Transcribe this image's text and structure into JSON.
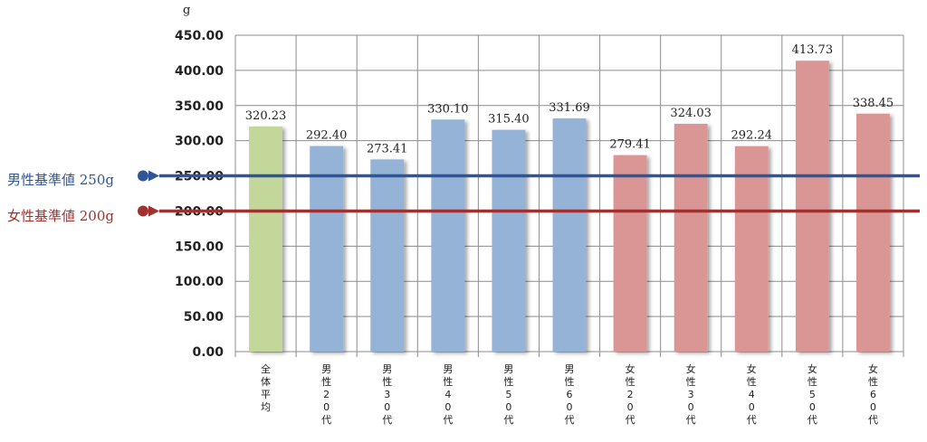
{
  "chart_data": {
    "type": "bar",
    "unit_label": "g",
    "categories": [
      "全体平均",
      "男性20代",
      "男性30代",
      "男性40代",
      "男性50代",
      "男性60代",
      "女性20代",
      "女性30代",
      "女性40代",
      "女性50代",
      "女性60代"
    ],
    "category_label_lines": [
      [
        "全",
        "体",
        "平",
        "均"
      ],
      [
        "男",
        "性",
        "2",
        "0",
        "代"
      ],
      [
        "男",
        "性",
        "3",
        "0",
        "代"
      ],
      [
        "男",
        "性",
        "4",
        "0",
        "代"
      ],
      [
        "男",
        "性",
        "5",
        "0",
        "代"
      ],
      [
        "男",
        "性",
        "6",
        "0",
        "代"
      ],
      [
        "女",
        "性",
        "2",
        "0",
        "代"
      ],
      [
        "女",
        "性",
        "3",
        "0",
        "代"
      ],
      [
        "女",
        "性",
        "4",
        "0",
        "代"
      ],
      [
        "女",
        "性",
        "5",
        "0",
        "代"
      ],
      [
        "女",
        "性",
        "6",
        "0",
        "代"
      ]
    ],
    "values": [
      320.23,
      292.4,
      273.41,
      330.1,
      315.4,
      331.69,
      279.41,
      324.03,
      292.24,
      413.73,
      338.45
    ],
    "value_labels": [
      "320.23",
      "292.40",
      "273.41",
      "330.10",
      "315.40",
      "331.69",
      "279.41",
      "324.03",
      "292.24",
      "413.73",
      "338.45"
    ],
    "bar_colors": [
      "#c4d79b",
      "#95b3d7",
      "#95b3d7",
      "#95b3d7",
      "#95b3d7",
      "#95b3d7",
      "#da9694",
      "#da9694",
      "#da9694",
      "#da9694",
      "#da9694"
    ],
    "ylim": [
      0,
      450
    ],
    "yticks": [
      0,
      50,
      100,
      150,
      200,
      250,
      300,
      350,
      400,
      450
    ],
    "ytick_labels": [
      "0.00",
      "50.00",
      "100.00",
      "150.00",
      "200.00",
      "250.00",
      "300.00",
      "350.00",
      "400.00",
      "450.00"
    ],
    "grid": true,
    "reference_lines": [
      {
        "label": "男性基準値 250g",
        "value": 250,
        "color": "#2f5597"
      },
      {
        "label": "女性基準値 200g",
        "value": 200,
        "color": "#a0312e"
      }
    ]
  }
}
